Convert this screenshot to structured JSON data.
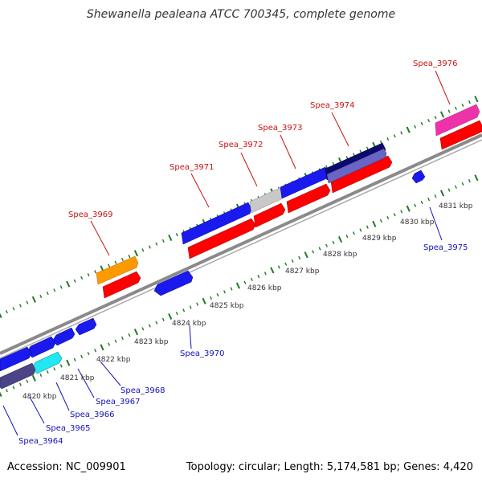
{
  "title": "Shewanella pealeana ATCC 700345, complete genome",
  "footer": {
    "accession": "Accession: NC_009901",
    "stats": "Topology: circular; Length: 5,174,581 bp; Genes: 4,420"
  },
  "colors": {
    "backbone": "#8a8a8a",
    "tick": "#1e7a1e",
    "forward_label": "#cc1111",
    "reverse_label": "#1111bb",
    "red": "#ff0000",
    "blue": "#1a1aee",
    "orange": "#ff9900",
    "navy": "#0a0a6e",
    "slate": "#6a64c4",
    "grey": "#c8c8c8",
    "pink": "#ee33aa",
    "cyan": "#22e6f0",
    "purple": "#4a4488"
  },
  "scale_labels": [
    "4820 kbp",
    "4821 kbp",
    "4822 kbp",
    "4823 kbp",
    "4824 kbp",
    "4825 kbp",
    "4826 kbp",
    "4827 kbp",
    "4828 kbp",
    "4829 kbp",
    "4830 kbp",
    "4831 kbp"
  ],
  "gene_labels_forward": [
    "Spea_3969",
    "Spea_3971",
    "Spea_3972",
    "Spea_3973",
    "Spea_3974",
    "Spea_3976"
  ],
  "gene_labels_reverse": [
    "Spea_3964",
    "Spea_3965",
    "Spea_3966",
    "Spea_3967",
    "Spea_3968",
    "Spea_3970",
    "Spea_3975"
  ]
}
